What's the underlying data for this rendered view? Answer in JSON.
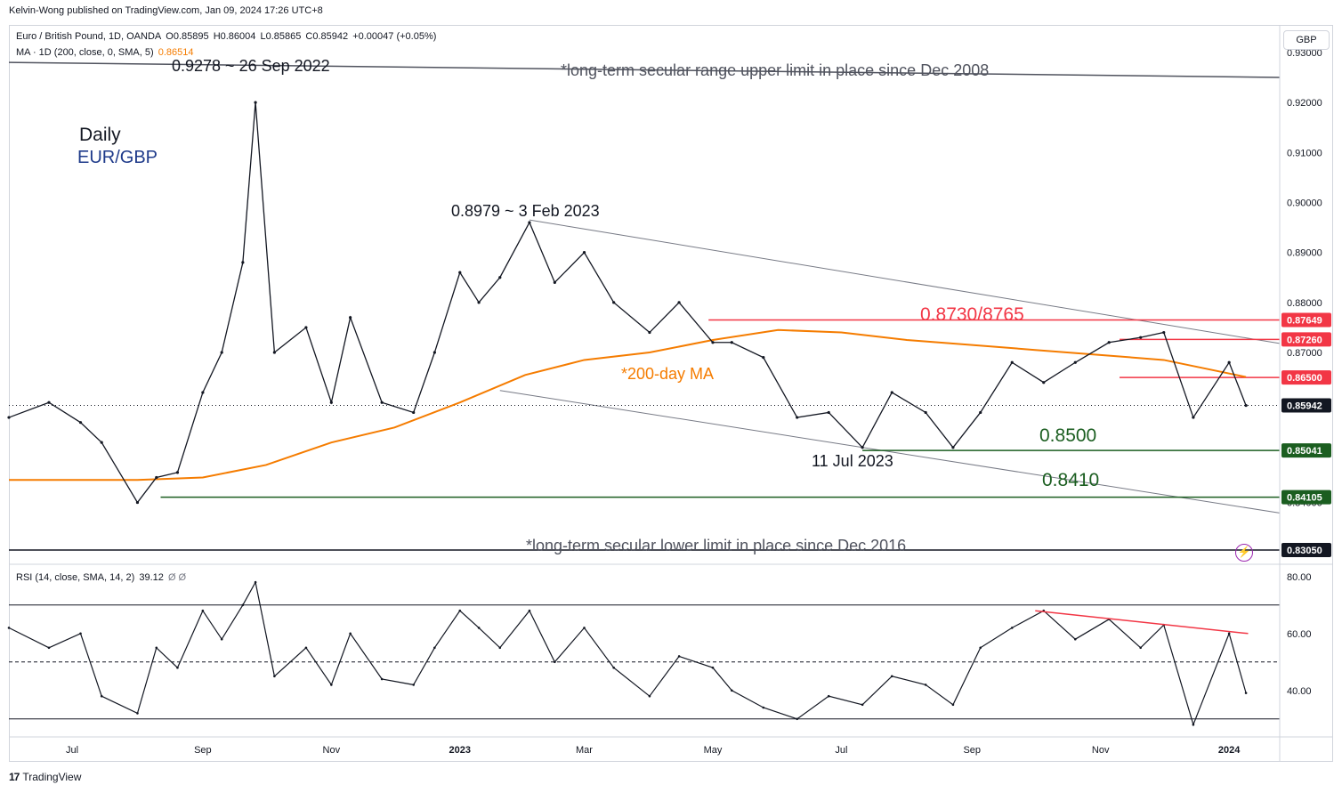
{
  "header": {
    "publisher_line": "Kelvin-Wong published on TradingView.com, Jan 09, 2024 17:26 UTC+8"
  },
  "legend": {
    "symbol": "Euro / British Pound, 1D, OANDA",
    "open": "O0.85895",
    "high": "H0.86004",
    "low": "L0.85865",
    "close": "C0.85942",
    "change": "+0.00047 (+0.05%)",
    "ma_label": "MA · 1D (200, close, 0, SMA, 5)",
    "ma_value": "0.86514",
    "rsi_label": "RSI (14, close, SMA, 14, 2)",
    "rsi_value": "39.12",
    "rsi_extra": "Ø Ø"
  },
  "currency_button": "GBP",
  "annotations": {
    "high_2022": "0.9278 ~ 26 Sep 2022",
    "upper_limit": "*long-term secular range upper limit in place since Dec 2008",
    "daily": "Daily",
    "pair": "EUR/GBP",
    "high_2023": "0.8979 ~ 3 Feb 2023",
    "resistance": "0.8730/8765",
    "ma200": "*200-day MA",
    "support_1": "0.8500",
    "low_date": "11 Jul 2023",
    "support_2": "0.8410",
    "lower_limit": "*long-term secular lower limit in place since Dec 2016"
  },
  "footer": {
    "brand": "TradingView",
    "logo": "17"
  },
  "colors": {
    "resistance": "#f23645",
    "support": "#1b5e20",
    "ma": "#f57c00",
    "pair_label": "#1e3a8a",
    "price_label_bg": "#131722",
    "annotation_grey": "#50535e"
  },
  "chart_data": [
    {
      "type": "line",
      "title": "",
      "instrument": "EUR/GBP",
      "timeframe": "1D",
      "ylim": [
        0.828,
        0.9355
      ],
      "y_ticks": [
        "0.93000",
        "0.92000",
        "0.91000",
        "0.90000",
        "0.89000",
        "0.88000",
        "0.87000",
        "0.86000",
        "0.85000",
        "0.84000"
      ],
      "x_ticks": [
        "Jul",
        "Sep",
        "Nov",
        "2023",
        "Mar",
        "May",
        "Jul",
        "Sep",
        "Nov",
        "2024"
      ],
      "x_tick_dates": [
        "2022-07-01",
        "2022-09-01",
        "2022-11-01",
        "2023-01-01",
        "2023-03-01",
        "2023-05-01",
        "2023-07-01",
        "2023-09-01",
        "2023-11-01",
        "2024-01-01"
      ],
      "xlim": [
        "2022-06-01",
        "2024-01-25"
      ],
      "price_series": {
        "name": "",
        "x": [
          "2022-06-01",
          "2022-06-20",
          "2022-07-05",
          "2022-07-15",
          "2022-08-01",
          "2022-08-10",
          "2022-08-20",
          "2022-09-01",
          "2022-09-10",
          "2022-09-20",
          "2022-09-26",
          "2022-10-05",
          "2022-10-20",
          "2022-11-01",
          "2022-11-10",
          "2022-11-25",
          "2022-12-10",
          "2022-12-20",
          "2023-01-01",
          "2023-01-10",
          "2023-01-20",
          "2023-02-03",
          "2023-02-15",
          "2023-03-01",
          "2023-03-15",
          "2023-04-01",
          "2023-04-15",
          "2023-05-01",
          "2023-05-10",
          "2023-05-25",
          "2023-06-10",
          "2023-06-25",
          "2023-07-11",
          "2023-07-25",
          "2023-08-10",
          "2023-08-23",
          "2023-09-05",
          "2023-09-20",
          "2023-10-05",
          "2023-10-20",
          "2023-11-05",
          "2023-11-20",
          "2023-12-01",
          "2023-12-15",
          "2024-01-01",
          "2024-01-09"
        ],
        "values": [
          0.857,
          0.86,
          0.856,
          0.852,
          0.84,
          0.845,
          0.846,
          0.862,
          0.87,
          0.888,
          0.92,
          0.87,
          0.875,
          0.86,
          0.877,
          0.86,
          0.858,
          0.87,
          0.886,
          0.88,
          0.885,
          0.896,
          0.884,
          0.89,
          0.88,
          0.874,
          0.88,
          0.872,
          0.872,
          0.869,
          0.857,
          0.858,
          0.851,
          0.862,
          0.858,
          0.851,
          0.858,
          0.868,
          0.864,
          0.868,
          0.872,
          0.873,
          0.874,
          0.857,
          0.868,
          0.8594
        ]
      },
      "ma_series": {
        "name": "",
        "x": [
          "2022-06-01",
          "2022-08-01",
          "2022-09-01",
          "2022-10-01",
          "2022-11-01",
          "2022-12-01",
          "2023-01-01",
          "2023-02-01",
          "2023-03-01",
          "2023-04-01",
          "2023-05-01",
          "2023-06-01",
          "2023-07-01",
          "2023-08-01",
          "2023-09-01",
          "2023-10-01",
          "2023-11-01",
          "2023-12-01",
          "2024-01-09"
        ],
        "values": [
          0.8445,
          0.8445,
          0.845,
          0.8475,
          0.852,
          0.855,
          0.86,
          0.8655,
          0.8685,
          0.87,
          0.8725,
          0.8745,
          0.874,
          0.8725,
          0.8715,
          0.8705,
          0.8695,
          0.8685,
          0.8651
        ]
      },
      "trend_lines": [
        {
          "x": [
            "2022-06-01",
            "2024-01-25"
          ],
          "y": [
            0.928,
            0.925
          ]
        },
        {
          "x": [
            "2023-02-03",
            "2024-01-25"
          ],
          "y": [
            0.8965,
            0.8718
          ]
        },
        {
          "x": [
            "2023-01-20",
            "2024-01-25"
          ],
          "y": [
            0.8624,
            0.8379
          ]
        }
      ],
      "horizontal_levels": [
        {
          "value": 0.87649,
          "label": "0.87649",
          "start": "2023-04-29",
          "color": "#f23645"
        },
        {
          "value": 0.8726,
          "label": "0.87260",
          "start": "2023-11-10",
          "color": "#f23645"
        },
        {
          "value": 0.865,
          "label": "0.86500",
          "start": "2023-11-10",
          "color": "#f23645"
        },
        {
          "value": 0.85041,
          "label": "0.85041",
          "start": "2023-07-11",
          "color": "#1b5e20"
        },
        {
          "value": 0.84105,
          "label": "0.84105",
          "start": "2022-08-12",
          "color": "#1b5e20"
        },
        {
          "value": 0.8305,
          "label": "0.83050",
          "start": "2022-06-01",
          "color": "#131722"
        }
      ],
      "last_price": {
        "value": 0.85942,
        "label": "0.85942"
      }
    },
    {
      "type": "line",
      "title": "",
      "indicator": "RSI",
      "ylim": [
        24,
        84
      ],
      "y_ticks": [
        "80.00",
        "60.00",
        "40.00"
      ],
      "bands": [
        70,
        50,
        30
      ],
      "series": {
        "name": "",
        "x": [
          "2022-06-01",
          "2022-06-20",
          "2022-07-05",
          "2022-07-15",
          "2022-08-01",
          "2022-08-10",
          "2022-08-20",
          "2022-09-01",
          "2022-09-10",
          "2022-09-20",
          "2022-09-26",
          "2022-10-05",
          "2022-10-20",
          "2022-11-01",
          "2022-11-10",
          "2022-11-25",
          "2022-12-10",
          "2022-12-20",
          "2023-01-01",
          "2023-01-10",
          "2023-01-20",
          "2023-02-03",
          "2023-02-15",
          "2023-03-01",
          "2023-03-15",
          "2023-04-01",
          "2023-04-15",
          "2023-05-01",
          "2023-05-10",
          "2023-05-25",
          "2023-06-10",
          "2023-06-25",
          "2023-07-11",
          "2023-07-25",
          "2023-08-10",
          "2023-08-23",
          "2023-09-05",
          "2023-09-20",
          "2023-10-05",
          "2023-10-20",
          "2023-11-05",
          "2023-11-20",
          "2023-12-01",
          "2023-12-15",
          "2024-01-01",
          "2024-01-09"
        ],
        "values": [
          62,
          55,
          60,
          38,
          32,
          55,
          48,
          68,
          58,
          70,
          78,
          45,
          55,
          42,
          60,
          44,
          42,
          55,
          68,
          62,
          55,
          68,
          50,
          62,
          48,
          38,
          52,
          48,
          40,
          34,
          30,
          38,
          35,
          45,
          42,
          35,
          55,
          62,
          68,
          58,
          65,
          55,
          63,
          28,
          60,
          39.12
        ]
      },
      "divergence_line": {
        "x": [
          "2023-10-01",
          "2024-01-10"
        ],
        "y": [
          68,
          60
        ],
        "color": "#f23645"
      }
    }
  ]
}
